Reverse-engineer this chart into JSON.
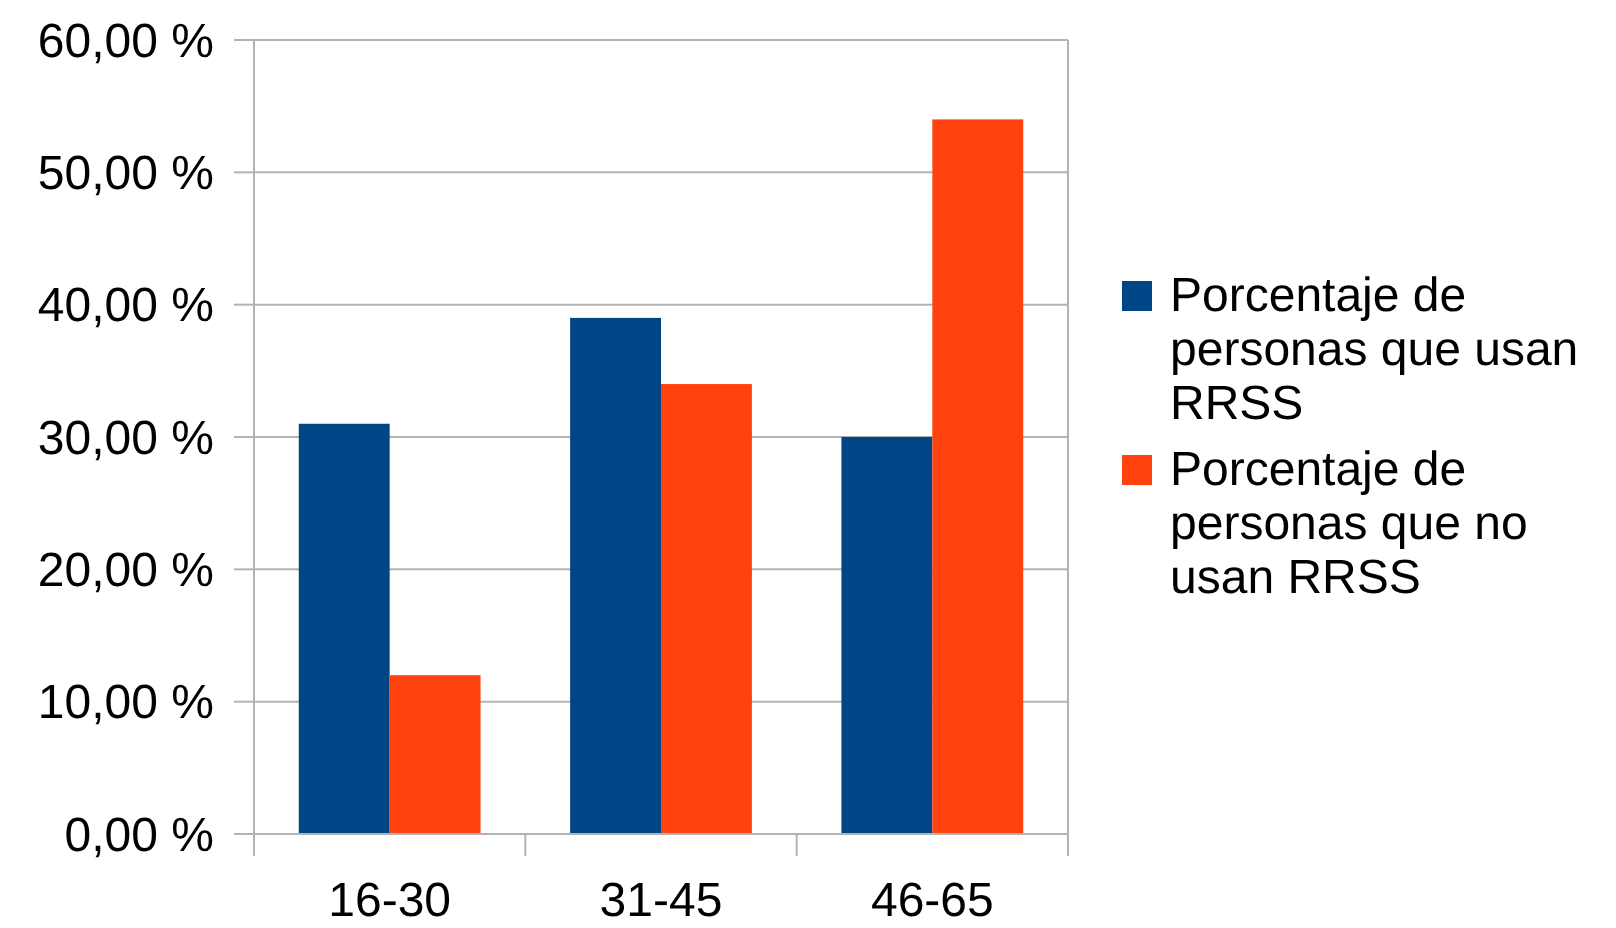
{
  "chart_data": {
    "type": "bar",
    "categories": [
      "16-30",
      "31-45",
      "46-65"
    ],
    "series": [
      {
        "name": "Porcentaje de personas que usan RRSS",
        "color": "#004586",
        "values": [
          31,
          39,
          30
        ]
      },
      {
        "name": "Porcentaje de personas que no usan RRSS",
        "color": "#ff420e",
        "values": [
          12,
          34,
          54
        ]
      }
    ],
    "ylim": [
      0,
      60
    ],
    "yticks": [
      {
        "value": 0,
        "label": "0,00 %"
      },
      {
        "value": 10,
        "label": "10,00 %"
      },
      {
        "value": 20,
        "label": "20,00 %"
      },
      {
        "value": 30,
        "label": "30,00 %"
      },
      {
        "value": 40,
        "label": "40,00 %"
      },
      {
        "value": 50,
        "label": "50,00 %"
      },
      {
        "value": 60,
        "label": "60,00 %"
      }
    ],
    "grid": "y",
    "legend": "right"
  }
}
